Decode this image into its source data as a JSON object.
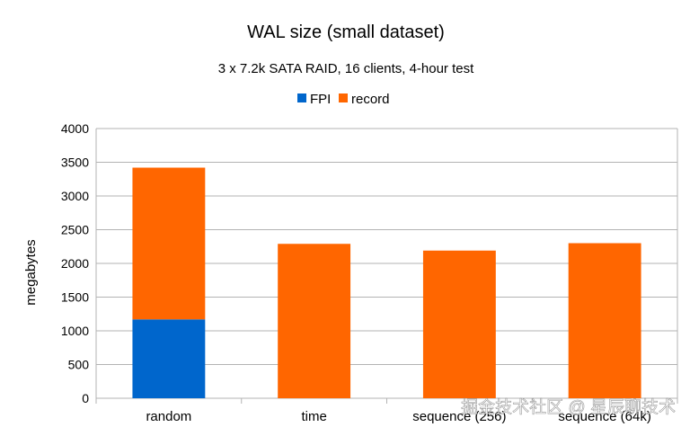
{
  "chart_data": {
    "type": "bar",
    "stacked": true,
    "title": "WAL size (small dataset)",
    "subtitle": "3 x 7.2k SATA RAID, 16 clients, 4-hour test",
    "xlabel": "",
    "ylabel": "megabytes",
    "categories": [
      "random",
      "time",
      "sequence (256)",
      "sequence (64k)"
    ],
    "series": [
      {
        "name": "FPI",
        "color": "#0066cc",
        "values": [
          1170,
          0,
          0,
          0
        ]
      },
      {
        "name": "record",
        "color": "#ff6600",
        "values": [
          2250,
          2290,
          2190,
          2300
        ]
      }
    ],
    "ylim": [
      0,
      4000
    ],
    "yticks": [
      0,
      500,
      1000,
      1500,
      2000,
      2500,
      3000,
      3500,
      4000
    ],
    "grid": true,
    "legend_position": "top-center"
  },
  "watermark": "掘金技术社区 @ 星辰聊技术"
}
